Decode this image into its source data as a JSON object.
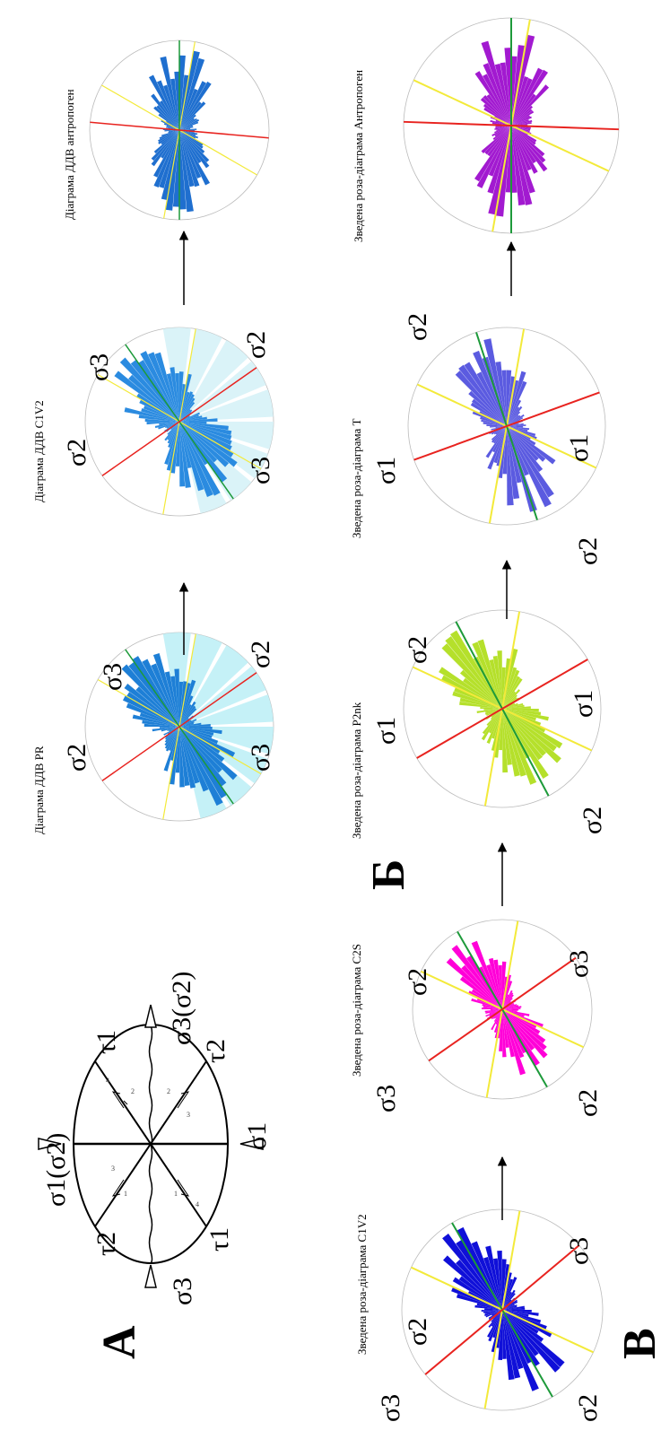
{
  "panels": {
    "a": {
      "letter": "А"
    },
    "b": {
      "letter": "Б"
    },
    "v": {
      "letter": "В"
    }
  },
  "ellipse_diagram": {
    "sigma1_sigma2": "σ1(σ2)",
    "sigma3_sigma2": "σ3(σ2)",
    "sigma3": "σ3",
    "sigma1": "σ1",
    "tau1": "τ1",
    "tau2": "τ2",
    "fracture_numbers": [
      "4",
      "2",
      "2",
      "1",
      "1",
      "3",
      "3",
      "4"
    ]
  },
  "roses_b": [
    {
      "caption": "Діаграма ДДВ PR",
      "fill": "#1e7fd6",
      "sector_fill": "#bfeff6"
    },
    {
      "caption": "Діаграма ДДВ C1V2",
      "fill": "#2b8be0",
      "sector_fill": "#d6f2f7"
    },
    {
      "caption": "Діаграма ДДВ антропоген",
      "fill": "#1f6fcf",
      "sector_fill": ""
    }
  ],
  "roses_v": [
    {
      "caption": "Зведена роза-діаграма C1V2",
      "fill": "#1010d8"
    },
    {
      "caption": "Зведена роза-діаграма C2S",
      "fill": "#ff00d8"
    },
    {
      "caption": "Зведена роза-діаграма P2nk",
      "fill": "#b5e02b"
    },
    {
      "caption": "Зведена роза-діаграма T",
      "fill": "#5b5be0"
    },
    {
      "caption": "Зведена роза-діаграма Антропоген",
      "fill": "#a21ad0"
    }
  ],
  "sigma_labels": {
    "s1": "σ1",
    "s2": "σ2",
    "s3": "σ3"
  },
  "line_colors": {
    "sigma1": "#e8231f",
    "sigma2": "#1d9a3a",
    "yellow": "#f3ea3a"
  }
}
